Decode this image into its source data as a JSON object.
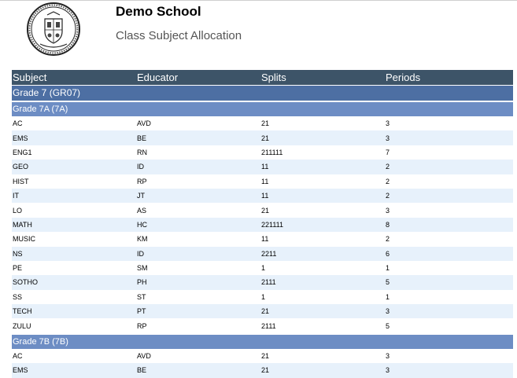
{
  "header": {
    "school_name": "Demo School",
    "report_title": "Class Subject Allocation",
    "logo_icon": "school-crest-icon"
  },
  "table": {
    "columns": [
      "Subject",
      "Educator",
      "Splits",
      "Periods"
    ],
    "grades": [
      {
        "label": "Grade 7 (GR07)",
        "classes": [
          {
            "label": "Grade 7A (7A)",
            "rows": [
              [
                "AC",
                "AVD",
                "21",
                "3"
              ],
              [
                "EMS",
                "BE",
                "21",
                "3"
              ],
              [
                "ENG1",
                "RN",
                "211111",
                "7"
              ],
              [
                "GEO",
                "ID",
                "11",
                "2"
              ],
              [
                "HIST",
                "RP",
                "11",
                "2"
              ],
              [
                "IT",
                "JT",
                "11",
                "2"
              ],
              [
                "LO",
                "AS",
                "21",
                "3"
              ],
              [
                "MATH",
                "HC",
                "221111",
                "8"
              ],
              [
                "MUSIC",
                "KM",
                "11",
                "2"
              ],
              [
                "NS",
                "ID",
                "2211",
                "6"
              ],
              [
                "PE",
                "SM",
                "1",
                "1"
              ],
              [
                "SOTHO",
                "PH",
                "2111",
                "5"
              ],
              [
                "SS",
                "ST",
                "1",
                "1"
              ],
              [
                "TECH",
                "PT",
                "21",
                "3"
              ],
              [
                "ZULU",
                "RP",
                "2111",
                "5"
              ]
            ]
          },
          {
            "label": "Grade 7B (7B)",
            "rows": [
              [
                "AC",
                "AVD",
                "21",
                "3"
              ],
              [
                "EMS",
                "BE",
                "21",
                "3"
              ]
            ]
          }
        ]
      }
    ]
  },
  "colors": {
    "header_row": "#3d5468",
    "grade_row": "#4d6fa3",
    "class_row": "#6d8dc4",
    "stripe": "#e7f1fb"
  }
}
